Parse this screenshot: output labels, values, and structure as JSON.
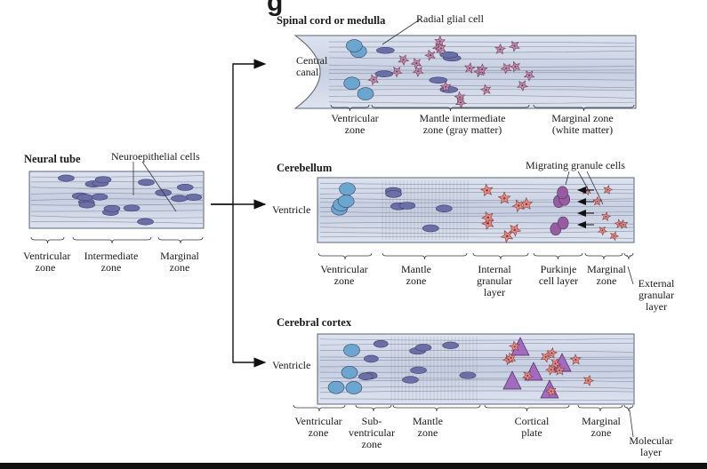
{
  "header": {
    "cut_text": "g"
  },
  "neural_tube": {
    "title": "Neural tube",
    "callout": "Neuroepithelial cells",
    "zones": [
      "Ventricular\nzone",
      "Intermediate\nzone",
      "Marginal\nzone"
    ]
  },
  "spinal": {
    "title": "Spinal cord or medulla",
    "callout": "Radial glial cell",
    "canal": "Central\ncanal",
    "zones": [
      "Ventricular\nzone",
      "Mantle intermediate\nzone (gray matter)",
      "Marginal zone\n(white matter)"
    ]
  },
  "cerebellum": {
    "title": "Cerebellum",
    "callout": "Migrating granule cells",
    "ventricle": "Ventricle",
    "zones": [
      "Ventricular\nzone",
      "Mantle\nzone",
      "Internal\ngranular\nlayer",
      "Purkinje\ncell layer",
      "Marginal\nzone",
      "External\ngranular\nlayer"
    ]
  },
  "cortex": {
    "title": "Cerebral cortex",
    "ventricle": "Ventricle",
    "zones": [
      "Ventricular\nzone",
      "Sub-\nventricular\nzone",
      "Mantle\nzone",
      "Cortical\nplate",
      "Marginal\nzone",
      "Molecular\nlayer"
    ]
  },
  "colors": {
    "band": "#cfd6e6",
    "band_border": "#5a647a",
    "ventricular_cell": "#6aa6d0",
    "neuron": "#6b6fa8",
    "glial_star": "#b98bb5",
    "granule": "#e88a7a",
    "purkinje": "#9a5aa0",
    "pyramidal": "#a36abf",
    "fiber": "#7a7f8c"
  }
}
